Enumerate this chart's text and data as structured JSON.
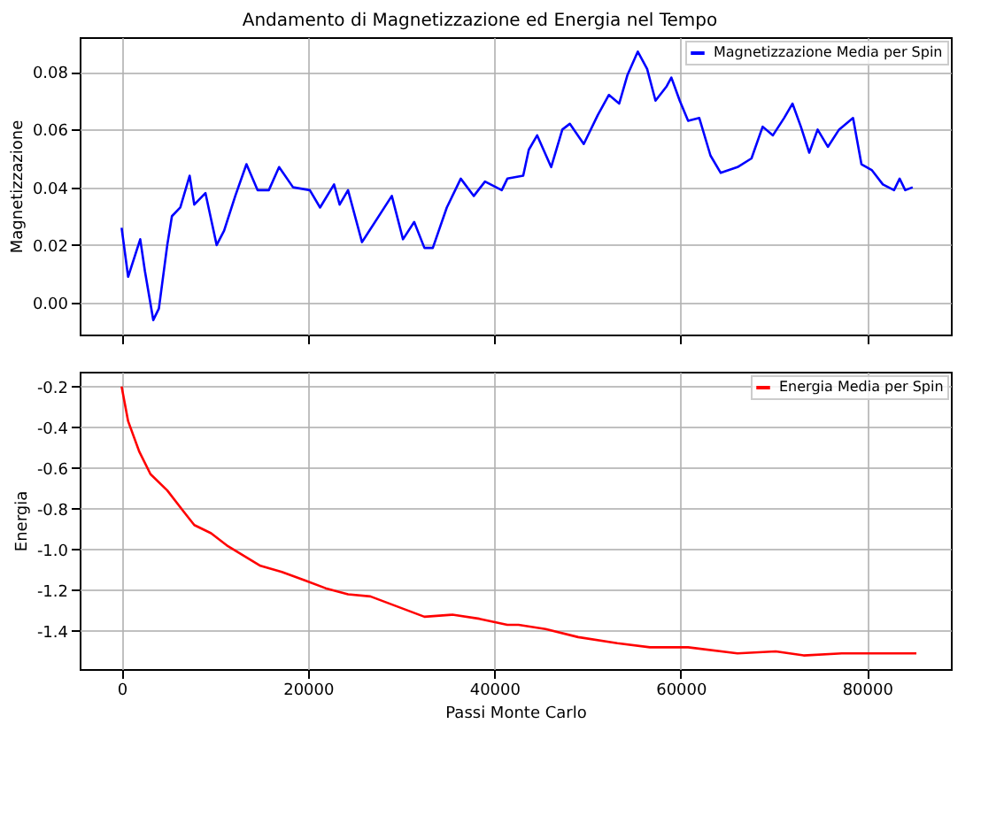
{
  "chart_data": [
    {
      "type": "line",
      "title": "Andamento di Magnetizzazione ed Energia nel Tempo",
      "ylabel": "Magnetizzazione",
      "xlim": [
        -4500,
        89000
      ],
      "xticks": [
        0,
        20000,
        40000,
        60000,
        80000
      ],
      "ylim": [
        -0.011,
        0.092
      ],
      "yticks": [
        {
          "value": 0,
          "label": "0.00"
        },
        {
          "value": 0.02,
          "label": "0.02"
        },
        {
          "value": 0.04,
          "label": "0.04"
        },
        {
          "value": 0.06,
          "label": "0.06"
        },
        {
          "value": 0.08,
          "label": "0.08"
        }
      ],
      "tick_labels": "y",
      "grid": true,
      "legend": "top right",
      "series": [
        {
          "name": "Magnetizzazione Media per Spin",
          "color": "#0000ff",
          "x": [
            0,
            700,
            1600,
            2000,
            2500,
            3400,
            4000,
            4900,
            5400,
            6300,
            7300,
            7800,
            9000,
            10200,
            11000,
            12200,
            13400,
            14600,
            15800,
            16900,
            18400,
            20200,
            21300,
            22800,
            23400,
            24300,
            25800,
            26600,
            29000,
            30200,
            31400,
            32500,
            33400,
            34900,
            36400,
            37800,
            39000,
            40800,
            41400,
            43100,
            43700,
            44600,
            46100,
            47300,
            48100,
            49600,
            51100,
            52300,
            53400,
            54300,
            55400,
            56400,
            57300,
            58500,
            59000,
            59900,
            60800,
            62000,
            63200,
            64300,
            66100,
            67600,
            68800,
            69900,
            71100,
            72000,
            72900,
            73800,
            74700,
            75800,
            77000,
            78500,
            79400,
            80500,
            81700,
            82900,
            83500,
            84100,
            84900
          ],
          "values": [
            0.026,
            0.009,
            0.018,
            0.022,
            0.011,
            -0.006,
            -0.002,
            0.02,
            0.03,
            0.033,
            0.044,
            0.034,
            0.038,
            0.02,
            0.025,
            0.037,
            0.048,
            0.039,
            0.039,
            0.047,
            0.04,
            0.039,
            0.033,
            0.041,
            0.034,
            0.039,
            0.021,
            0.025,
            0.037,
            0.022,
            0.028,
            0.019,
            0.019,
            0.033,
            0.043,
            0.037,
            0.042,
            0.039,
            0.043,
            0.044,
            0.053,
            0.058,
            0.047,
            0.06,
            0.062,
            0.055,
            0.065,
            0.072,
            0.069,
            0.079,
            0.087,
            0.081,
            0.07,
            0.075,
            0.078,
            0.07,
            0.063,
            0.064,
            0.051,
            0.045,
            0.047,
            0.05,
            0.061,
            0.058,
            0.064,
            0.069,
            0.061,
            0.052,
            0.06,
            0.054,
            0.06,
            0.064,
            0.048,
            0.046,
            0.041,
            0.039,
            0.043,
            0.039,
            0.04
          ]
        }
      ]
    },
    {
      "type": "line",
      "xlabel": "Passi Monte Carlo",
      "ylabel": "Energia",
      "xlim": [
        -4500,
        89000
      ],
      "xticks": [
        0,
        20000,
        40000,
        60000,
        80000
      ],
      "ylim": [
        -1.587,
        -0.127
      ],
      "yticks": [
        {
          "value": -0.2,
          "label": "-0.2"
        },
        {
          "value": -0.4,
          "label": "-0.4"
        },
        {
          "value": -0.6,
          "label": "-0.6"
        },
        {
          "value": -0.8,
          "label": "-0.8"
        },
        {
          "value": -1.0,
          "label": "-1.0"
        },
        {
          "value": -1.2,
          "label": "-1.2"
        },
        {
          "value": -1.4,
          "label": "-1.4"
        }
      ],
      "grid": true,
      "legend": "top right",
      "series": [
        {
          "name": "Energia Media per Spin",
          "color": "#ff0000",
          "x": [
            0,
            700,
            1900,
            3100,
            4900,
            6600,
            7800,
            9600,
            11300,
            13100,
            14900,
            17200,
            19600,
            21900,
            24300,
            26700,
            29600,
            32500,
            35500,
            38400,
            41400,
            42600,
            45500,
            49000,
            53200,
            56700,
            60800,
            66100,
            70200,
            73200,
            77300,
            80900,
            85300
          ],
          "values": [
            -0.2,
            -0.37,
            -0.52,
            -0.63,
            -0.71,
            -0.81,
            -0.88,
            -0.92,
            -0.98,
            -1.03,
            -1.08,
            -1.11,
            -1.15,
            -1.19,
            -1.22,
            -1.23,
            -1.28,
            -1.33,
            -1.32,
            -1.34,
            -1.37,
            -1.37,
            -1.39,
            -1.43,
            -1.46,
            -1.48,
            -1.48,
            -1.51,
            -1.5,
            -1.52,
            -1.51,
            -1.51,
            -1.51
          ]
        }
      ]
    }
  ]
}
